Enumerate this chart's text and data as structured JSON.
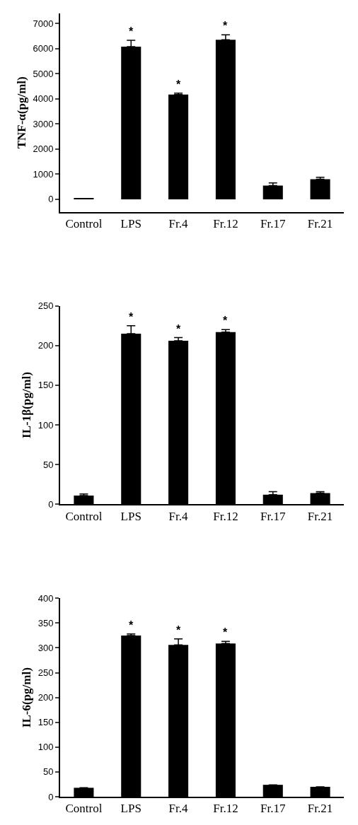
{
  "chart_data": [
    {
      "type": "bar",
      "ylabel": "TNF-α(pg/ml)",
      "categories": [
        "Control",
        "LPS",
        "Fr.4",
        "Fr.12",
        "Fr.17",
        "Fr.21"
      ],
      "values": [
        30,
        6080,
        4170,
        6350,
        550,
        800
      ],
      "errors": [
        null,
        250,
        60,
        200,
        100,
        80
      ],
      "color": "#000000",
      "ylim": [
        -500,
        7400
      ],
      "yticks": [
        0,
        1000,
        2000,
        3000,
        4000,
        5000,
        6000,
        7000
      ],
      "annotations": [
        {
          "text": "*",
          "x": "LPS",
          "y": 6080
        },
        {
          "text": "*",
          "x": "Fr.4",
          "y": 4170
        },
        {
          "text": "*",
          "x": "Fr.12",
          "y": 6350
        }
      ]
    },
    {
      "type": "bar",
      "ylabel": "IL-1β(pg/ml)",
      "categories": [
        "Control",
        "LPS",
        "Fr.4",
        "Fr.12",
        "Fr.17",
        "Fr.21"
      ],
      "values": [
        11,
        215,
        206,
        217,
        12,
        14
      ],
      "errors": [
        2,
        10,
        4,
        3,
        4,
        2
      ],
      "color": "#000000",
      "ylim": [
        0,
        250
      ],
      "yticks": [
        0,
        50,
        100,
        150,
        200,
        250
      ],
      "annotations": [
        {
          "text": "*",
          "x": "LPS",
          "y": 215
        },
        {
          "text": "*",
          "x": "Fr.4",
          "y": 206
        },
        {
          "text": "*",
          "x": "Fr.12",
          "y": 217
        }
      ]
    },
    {
      "type": "bar",
      "ylabel": "IL-6(pg/ml)",
      "categories": [
        "Control",
        "LPS",
        "Fr.4",
        "Fr.12",
        "Fr.17",
        "Fr.21"
      ],
      "values": [
        18,
        325,
        306,
        309,
        24,
        20
      ],
      "errors": [
        null,
        3,
        12,
        4,
        null,
        null
      ],
      "color": "#000000",
      "ylim": [
        0,
        400
      ],
      "yticks": [
        0,
        50,
        100,
        150,
        200,
        250,
        300,
        350,
        400
      ],
      "annotations": [
        {
          "text": "*",
          "x": "LPS",
          "y": 325
        },
        {
          "text": "*",
          "x": "Fr.4",
          "y": 306
        },
        {
          "text": "*",
          "x": "Fr.12",
          "y": 309
        }
      ]
    }
  ]
}
